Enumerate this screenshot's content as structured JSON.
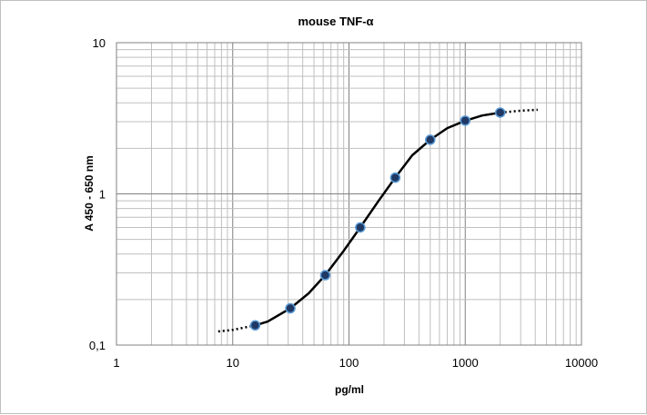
{
  "chart_data": {
    "type": "scatter",
    "title": "mouse TNF-α",
    "xlabel": "pg/ml",
    "ylabel": "A 450 - 650 nm",
    "x_scale": "log",
    "y_scale": "log",
    "xlim": [
      1,
      10000
    ],
    "ylim": [
      0.1,
      10
    ],
    "x_ticks": [
      "1",
      "10",
      "100",
      "1000",
      "10000"
    ],
    "y_ticks": [
      "0,1",
      "1",
      "10"
    ],
    "grid": true,
    "legend": "none",
    "series": [
      {
        "x": [
          15.6,
          31.3,
          62.5,
          125,
          250,
          500,
          1000,
          2000
        ],
        "y": [
          0.135,
          0.175,
          0.29,
          0.6,
          1.28,
          2.28,
          3.05,
          3.45
        ],
        "marker_color": "#1f3864",
        "marker_edge": "#5b9bd5"
      }
    ],
    "fit_curve": {
      "x": [
        7.5,
        10,
        15.6,
        20,
        31.3,
        45,
        62.5,
        90,
        125,
        180,
        250,
        350,
        500,
        700,
        1000,
        1400,
        2000,
        3000,
        4200
      ],
      "y": [
        0.123,
        0.126,
        0.135,
        0.143,
        0.175,
        0.22,
        0.29,
        0.42,
        0.6,
        0.9,
        1.28,
        1.8,
        2.28,
        2.72,
        3.05,
        3.3,
        3.45,
        3.55,
        3.6
      ],
      "color": "#000000",
      "extrapolated_x_below": 15.6,
      "extrapolated_x_above": 2000
    }
  }
}
